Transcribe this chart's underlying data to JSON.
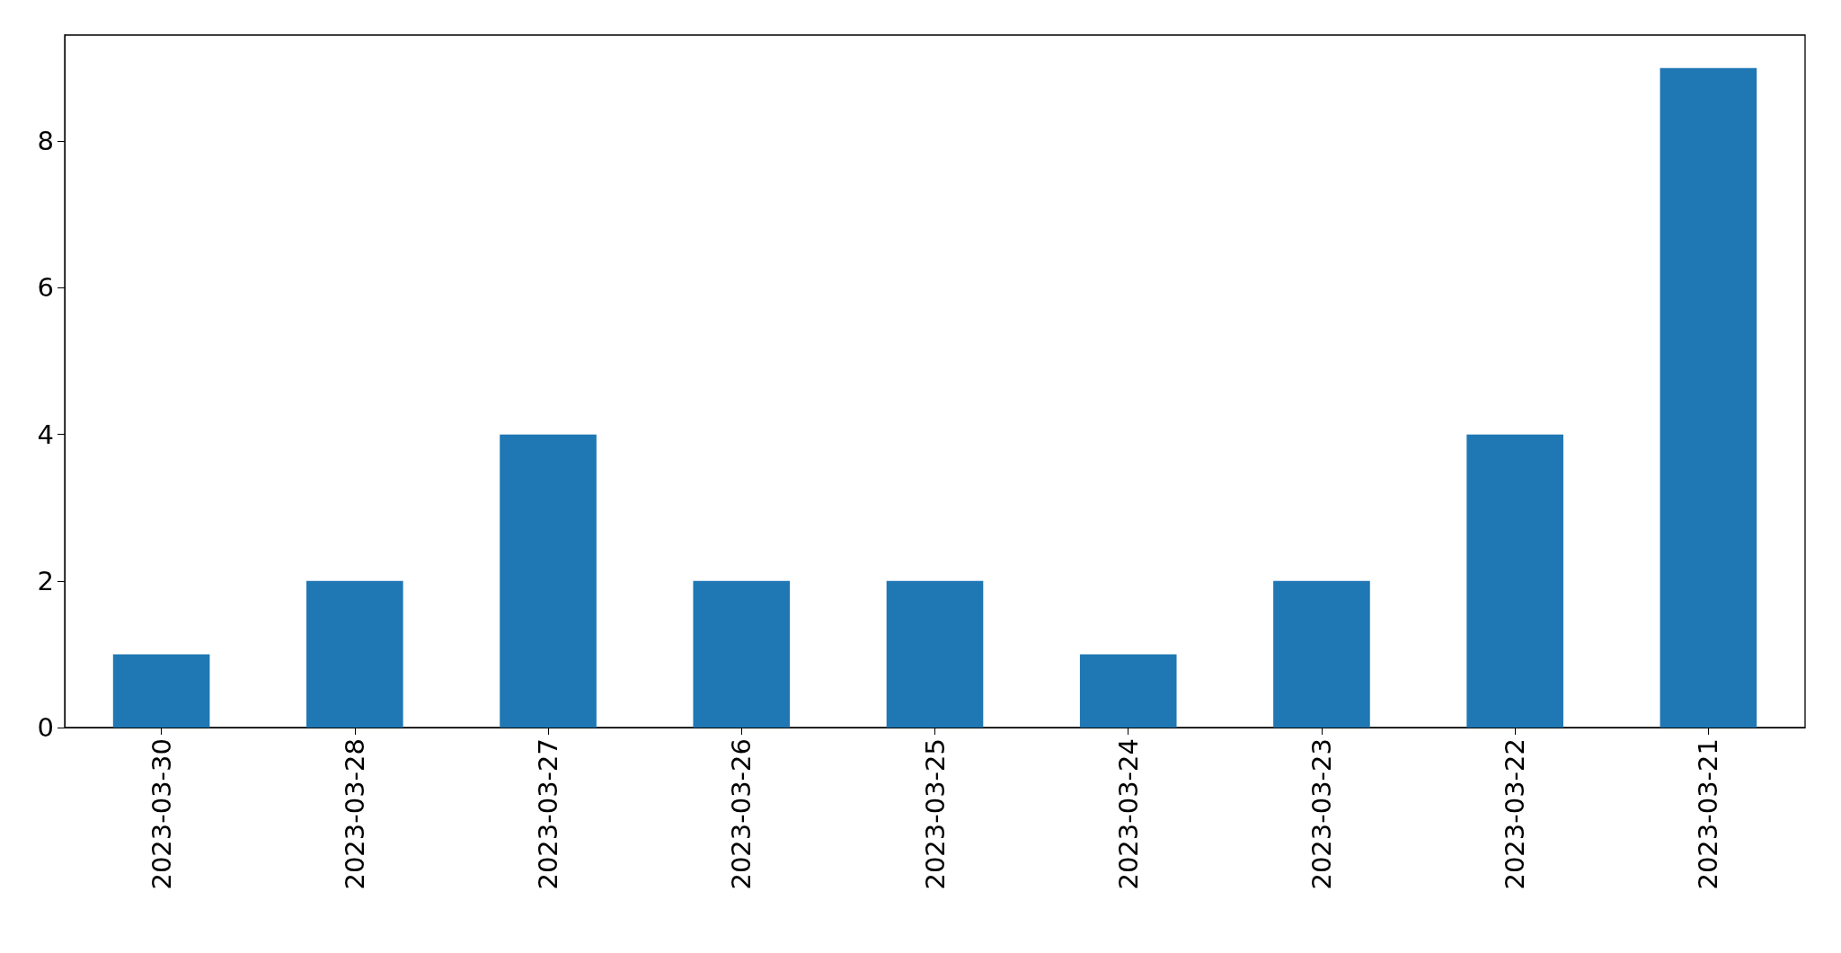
{
  "chart_data": {
    "type": "bar",
    "categories": [
      "2023-03-30",
      "2023-03-28",
      "2023-03-27",
      "2023-03-26",
      "2023-03-25",
      "2023-03-24",
      "2023-03-23",
      "2023-03-22",
      "2023-03-21"
    ],
    "values": [
      1,
      2,
      4,
      2,
      2,
      1,
      2,
      4,
      9
    ],
    "color": "#1f77b4",
    "ylim": [
      0,
      9.45
    ],
    "yticks": [
      0,
      2,
      4,
      6,
      8
    ]
  }
}
